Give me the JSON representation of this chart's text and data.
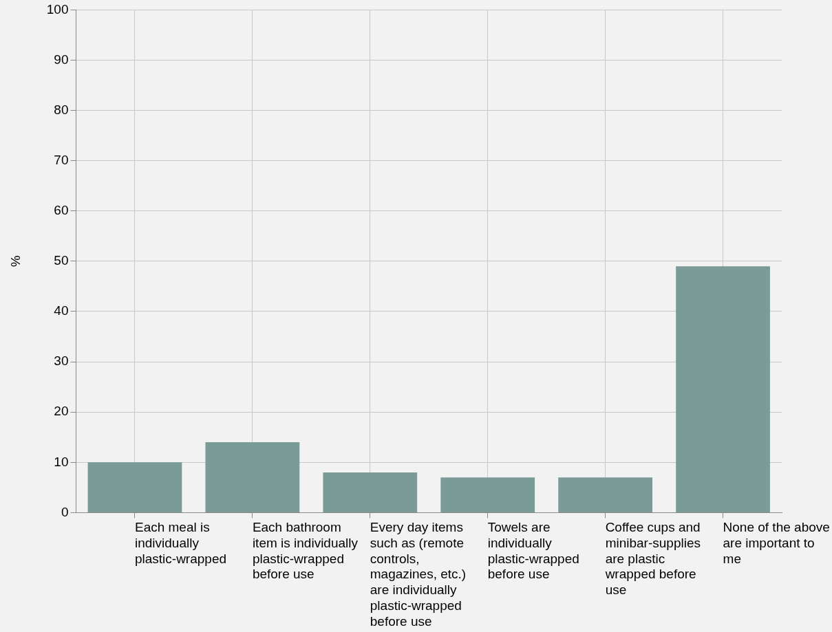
{
  "chart_data": {
    "type": "bar",
    "ylabel": "%",
    "categories": [
      "Each meal is individually plastic-wrapped",
      "Each bathroom item is individually plastic-wrapped before use",
      "Every day items such as (remote controls, magazines, etc.) are individually plastic-wrapped before use",
      "Towels are individually plastic-wrapped before use",
      "Coffee cups and minibar-supplies are plastic wrapped before use",
      "None of the above are important to me"
    ],
    "values": [
      10,
      14,
      8,
      7,
      7,
      49
    ],
    "color": "#7a9b98",
    "ylim": [
      0,
      100
    ],
    "yticks": [
      0,
      10,
      20,
      30,
      40,
      50,
      60,
      70,
      80,
      90,
      100
    ],
    "grid": true
  }
}
